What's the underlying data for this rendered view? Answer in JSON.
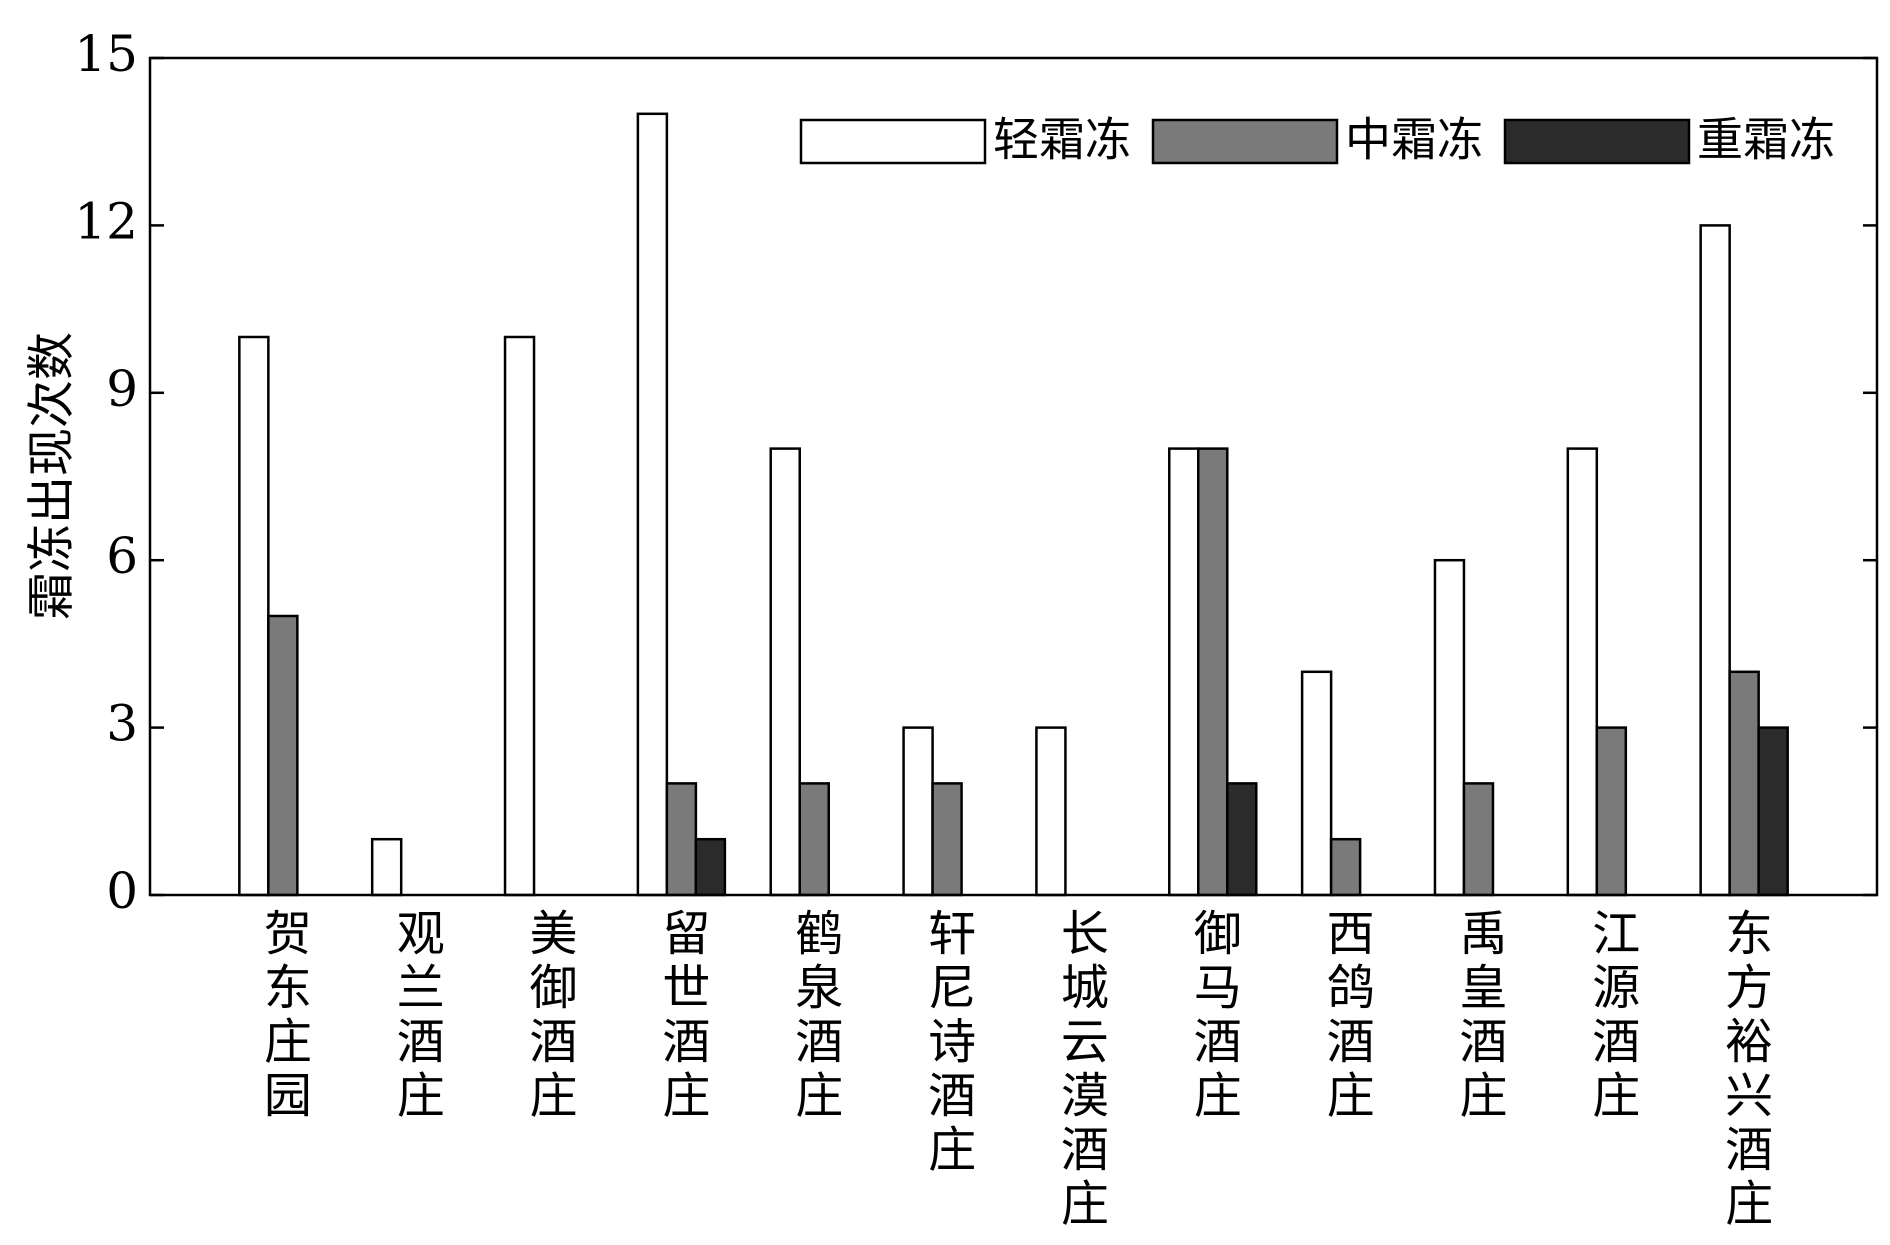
{
  "chart_data": {
    "type": "bar",
    "y_label": "霜冻出现次数",
    "categories": [
      "贺东庄园",
      "观兰酒庄",
      "美御酒庄",
      "留世酒庄",
      "鹤泉酒庄",
      "轩尼诗酒庄",
      "长城云漠酒庄",
      "御马酒庄",
      "西鸽酒庄",
      "禹皇酒庄",
      "江源酒庄",
      "东方裕兴酒庄"
    ],
    "series": [
      {
        "name": "轻霜冻",
        "color": "#ffffff",
        "values": [
          10,
          1,
          10,
          14,
          8,
          3,
          3,
          8,
          4,
          6,
          8,
          12
        ]
      },
      {
        "name": "中霜冻",
        "color": "#7a7a7a",
        "values": [
          5,
          0,
          0,
          2,
          2,
          2,
          0,
          8,
          1,
          2,
          3,
          4
        ]
      },
      {
        "name": "重霜冻",
        "color": "#2b2b2b",
        "values": [
          0,
          0,
          0,
          1,
          0,
          0,
          0,
          2,
          0,
          0,
          0,
          3
        ]
      }
    ],
    "ylim": [
      0,
      15
    ],
    "yticks": [
      0,
      3,
      6,
      9,
      12,
      15
    ],
    "legend": "upper right"
  }
}
